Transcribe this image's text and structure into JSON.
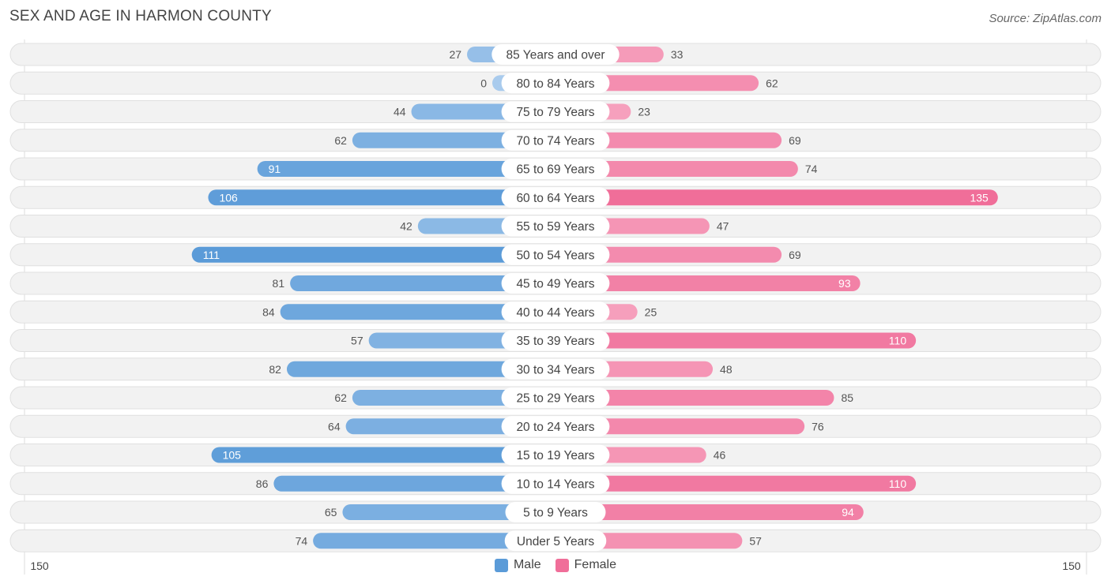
{
  "header": {
    "title": "SEX AND AGE IN HARMON COUNTY",
    "source": "Source: ZipAtlas.com"
  },
  "legend": {
    "male_label": "Male",
    "female_label": "Female"
  },
  "colors": {
    "male": "#5b9bd8",
    "male_light": "#a9cbed",
    "female": "#f06e99",
    "female_light": "#f7aac4",
    "row_bg": "#f2f2f2",
    "row_border": "#e0e0e0"
  },
  "chart_data": {
    "type": "bar",
    "orientation": "horizontal-diverging",
    "title": "SEX AND AGE IN HARMON COUNTY",
    "categories": [
      "85 Years and over",
      "80 to 84 Years",
      "75 to 79 Years",
      "70 to 74 Years",
      "65 to 69 Years",
      "60 to 64 Years",
      "55 to 59 Years",
      "50 to 54 Years",
      "45 to 49 Years",
      "40 to 44 Years",
      "35 to 39 Years",
      "30 to 34 Years",
      "25 to 29 Years",
      "20 to 24 Years",
      "15 to 19 Years",
      "10 to 14 Years",
      "5 to 9 Years",
      "Under 5 Years"
    ],
    "series": [
      {
        "name": "Male",
        "values": [
          27,
          0,
          44,
          62,
          91,
          106,
          42,
          111,
          81,
          84,
          57,
          82,
          62,
          64,
          105,
          86,
          65,
          74
        ]
      },
      {
        "name": "Female",
        "values": [
          33,
          62,
          23,
          69,
          74,
          135,
          47,
          69,
          93,
          25,
          110,
          48,
          85,
          76,
          46,
          110,
          94,
          57
        ]
      }
    ],
    "axis": {
      "min_label": "150",
      "max_label": "150",
      "xlim": [
        -150,
        150
      ]
    },
    "legend_position": "bottom-center"
  }
}
